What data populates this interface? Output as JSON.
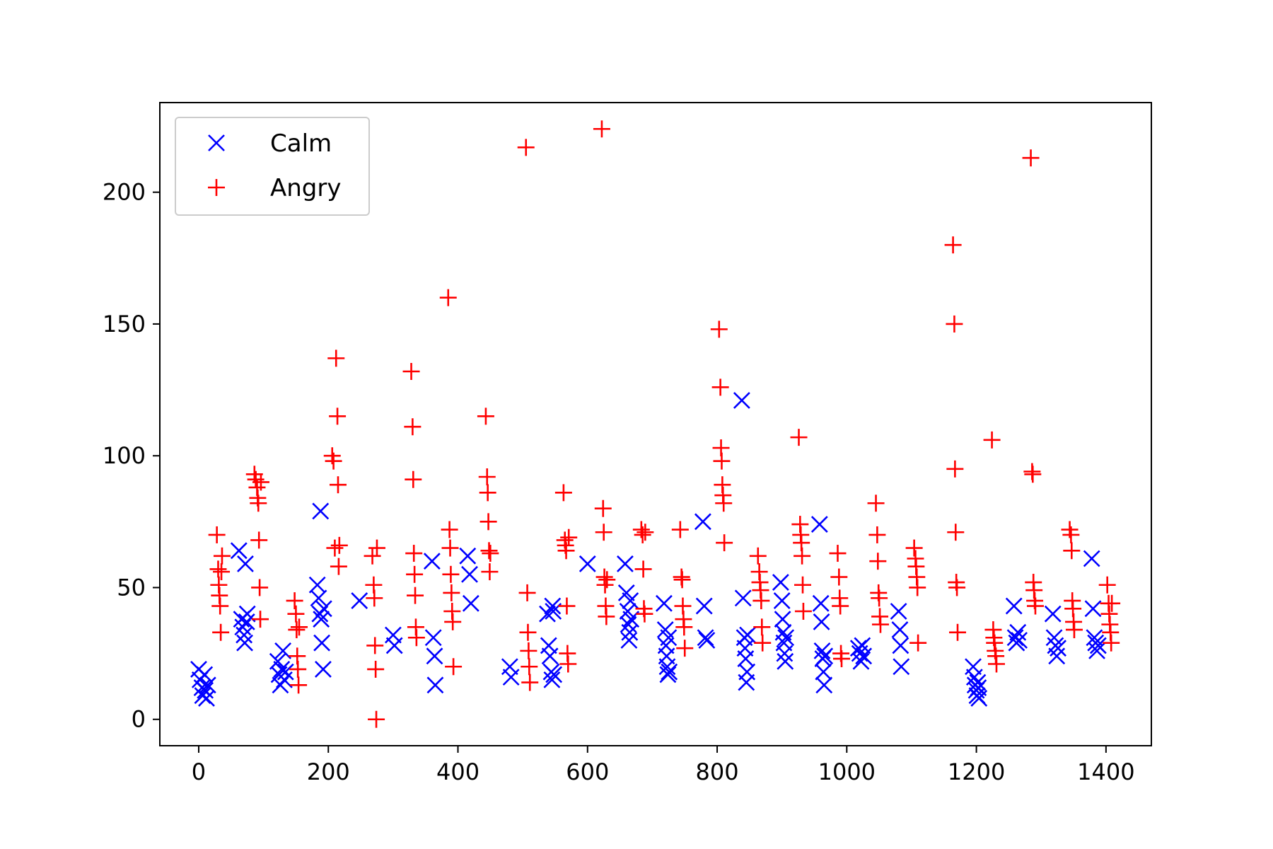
{
  "chart_data": {
    "type": "scatter",
    "xlim": [
      -60,
      1470
    ],
    "ylim": [
      -10,
      234
    ],
    "x_ticks": [
      0,
      200,
      400,
      600,
      800,
      1000,
      1200,
      1400
    ],
    "y_ticks": [
      0,
      50,
      100,
      150,
      200
    ],
    "grid": false,
    "legend_position": "top-left",
    "series": [
      {
        "name": "Calm",
        "marker": "x",
        "color": "#0000ff",
        "points": [
          [
            0,
            19
          ],
          [
            2,
            15
          ],
          [
            5,
            12
          ],
          [
            6,
            9
          ],
          [
            9,
            17
          ],
          [
            10,
            11
          ],
          [
            12,
            8
          ],
          [
            14,
            13
          ],
          [
            62,
            64
          ],
          [
            66,
            38
          ],
          [
            68,
            35
          ],
          [
            70,
            32
          ],
          [
            71,
            29
          ],
          [
            72,
            59
          ],
          [
            74,
            37
          ],
          [
            75,
            40
          ],
          [
            122,
            22
          ],
          [
            124,
            17
          ],
          [
            126,
            13
          ],
          [
            128,
            19
          ],
          [
            130,
            26
          ],
          [
            132,
            15
          ],
          [
            134,
            18
          ],
          [
            183,
            51
          ],
          [
            185,
            46
          ],
          [
            187,
            40
          ],
          [
            188,
            79
          ],
          [
            189,
            38
          ],
          [
            190,
            29
          ],
          [
            192,
            19
          ],
          [
            193,
            42
          ],
          [
            248,
            45
          ],
          [
            300,
            32
          ],
          [
            302,
            28
          ],
          [
            360,
            60
          ],
          [
            362,
            31
          ],
          [
            364,
            24
          ],
          [
            365,
            13
          ],
          [
            415,
            62
          ],
          [
            418,
            55
          ],
          [
            420,
            44
          ],
          [
            480,
            20
          ],
          [
            482,
            16
          ],
          [
            538,
            40
          ],
          [
            540,
            28
          ],
          [
            542,
            24
          ],
          [
            544,
            18
          ],
          [
            545,
            15
          ],
          [
            546,
            43
          ],
          [
            547,
            41
          ],
          [
            548,
            17
          ],
          [
            600,
            59
          ],
          [
            658,
            59
          ],
          [
            660,
            48
          ],
          [
            662,
            41
          ],
          [
            663,
            36
          ],
          [
            664,
            30
          ],
          [
            665,
            33
          ],
          [
            666,
            45
          ],
          [
            667,
            38
          ],
          [
            718,
            44
          ],
          [
            720,
            34
          ],
          [
            721,
            28
          ],
          [
            722,
            24
          ],
          [
            723,
            20
          ],
          [
            724,
            17
          ],
          [
            725,
            31
          ],
          [
            726,
            18
          ],
          [
            778,
            75
          ],
          [
            780,
            43
          ],
          [
            782,
            31
          ],
          [
            784,
            30
          ],
          [
            838,
            121
          ],
          [
            840,
            46
          ],
          [
            842,
            31
          ],
          [
            843,
            27
          ],
          [
            844,
            23
          ],
          [
            845,
            14
          ],
          [
            846,
            18
          ],
          [
            847,
            32
          ],
          [
            898,
            52
          ],
          [
            900,
            45
          ],
          [
            901,
            38
          ],
          [
            902,
            33
          ],
          [
            903,
            29
          ],
          [
            904,
            25
          ],
          [
            905,
            22
          ],
          [
            906,
            31
          ],
          [
            958,
            74
          ],
          [
            960,
            44
          ],
          [
            961,
            37
          ],
          [
            962,
            26
          ],
          [
            963,
            23
          ],
          [
            964,
            18
          ],
          [
            965,
            13
          ],
          [
            966,
            24
          ],
          [
            1018,
            27
          ],
          [
            1020,
            25
          ],
          [
            1022,
            22
          ],
          [
            1024,
            28
          ],
          [
            1026,
            24
          ],
          [
            1080,
            41
          ],
          [
            1082,
            34
          ],
          [
            1083,
            28
          ],
          [
            1084,
            20
          ],
          [
            1195,
            20
          ],
          [
            1197,
            16
          ],
          [
            1198,
            13
          ],
          [
            1200,
            11
          ],
          [
            1201,
            9
          ],
          [
            1202,
            14
          ],
          [
            1203,
            12
          ],
          [
            1204,
            8
          ],
          [
            1258,
            43
          ],
          [
            1260,
            31
          ],
          [
            1262,
            29
          ],
          [
            1264,
            33
          ],
          [
            1266,
            30
          ],
          [
            1318,
            40
          ],
          [
            1320,
            31
          ],
          [
            1322,
            28
          ],
          [
            1324,
            24
          ],
          [
            1326,
            27
          ],
          [
            1378,
            61
          ],
          [
            1380,
            42
          ],
          [
            1382,
            31
          ],
          [
            1384,
            29
          ],
          [
            1386,
            26
          ],
          [
            1388,
            28
          ]
        ]
      },
      {
        "name": "Angry",
        "marker": "+",
        "color": "#ff0000",
        "points": [
          [
            28,
            70
          ],
          [
            30,
            57
          ],
          [
            31,
            51
          ],
          [
            32,
            47
          ],
          [
            33,
            43
          ],
          [
            34,
            33
          ],
          [
            35,
            56
          ],
          [
            36,
            62
          ],
          [
            86,
            93
          ],
          [
            88,
            91
          ],
          [
            90,
            88
          ],
          [
            91,
            84
          ],
          [
            92,
            82
          ],
          [
            93,
            68
          ],
          [
            94,
            50
          ],
          [
            95,
            38
          ],
          [
            96,
            90
          ],
          [
            148,
            45
          ],
          [
            150,
            40
          ],
          [
            151,
            34
          ],
          [
            152,
            24
          ],
          [
            153,
            19
          ],
          [
            154,
            13
          ],
          [
            155,
            35
          ],
          [
            206,
            100
          ],
          [
            208,
            98
          ],
          [
            210,
            65
          ],
          [
            212,
            137
          ],
          [
            214,
            115
          ],
          [
            215,
            89
          ],
          [
            216,
            58
          ],
          [
            217,
            66
          ],
          [
            268,
            62
          ],
          [
            270,
            51
          ],
          [
            271,
            46
          ],
          [
            272,
            28
          ],
          [
            273,
            19
          ],
          [
            274,
            0
          ],
          [
            275,
            65
          ],
          [
            328,
            132
          ],
          [
            330,
            111
          ],
          [
            331,
            91
          ],
          [
            332,
            63
          ],
          [
            333,
            55
          ],
          [
            334,
            47
          ],
          [
            335,
            35
          ],
          [
            336,
            31
          ],
          [
            385,
            160
          ],
          [
            387,
            72
          ],
          [
            388,
            65
          ],
          [
            389,
            55
          ],
          [
            390,
            48
          ],
          [
            391,
            41
          ],
          [
            392,
            37
          ],
          [
            393,
            20
          ],
          [
            443,
            115
          ],
          [
            445,
            92
          ],
          [
            446,
            86
          ],
          [
            447,
            75
          ],
          [
            448,
            64
          ],
          [
            449,
            56
          ],
          [
            450,
            63
          ],
          [
            505,
            217
          ],
          [
            507,
            48
          ],
          [
            508,
            33
          ],
          [
            509,
            26
          ],
          [
            510,
            20
          ],
          [
            511,
            14
          ],
          [
            563,
            86
          ],
          [
            565,
            68
          ],
          [
            566,
            66
          ],
          [
            567,
            64
          ],
          [
            568,
            43
          ],
          [
            569,
            25
          ],
          [
            570,
            21
          ],
          [
            571,
            69
          ],
          [
            622,
            224
          ],
          [
            624,
            80
          ],
          [
            625,
            71
          ],
          [
            626,
            54
          ],
          [
            627,
            51
          ],
          [
            628,
            43
          ],
          [
            629,
            39
          ],
          [
            630,
            53
          ],
          [
            683,
            72
          ],
          [
            685,
            70
          ],
          [
            686,
            57
          ],
          [
            687,
            42
          ],
          [
            688,
            40
          ],
          [
            689,
            71
          ],
          [
            743,
            72
          ],
          [
            745,
            54
          ],
          [
            746,
            53
          ],
          [
            747,
            43
          ],
          [
            748,
            38
          ],
          [
            749,
            35
          ],
          [
            750,
            27
          ],
          [
            803,
            148
          ],
          [
            805,
            126
          ],
          [
            806,
            103
          ],
          [
            807,
            98
          ],
          [
            808,
            89
          ],
          [
            809,
            85
          ],
          [
            810,
            82
          ],
          [
            811,
            67
          ],
          [
            863,
            62
          ],
          [
            865,
            56
          ],
          [
            866,
            52
          ],
          [
            867,
            49
          ],
          [
            868,
            45
          ],
          [
            869,
            35
          ],
          [
            870,
            29
          ],
          [
            926,
            107
          ],
          [
            928,
            74
          ],
          [
            929,
            70
          ],
          [
            930,
            67
          ],
          [
            931,
            62
          ],
          [
            932,
            51
          ],
          [
            933,
            41
          ],
          [
            986,
            63
          ],
          [
            988,
            54
          ],
          [
            989,
            46
          ],
          [
            990,
            43
          ],
          [
            991,
            25
          ],
          [
            992,
            23
          ],
          [
            1045,
            82
          ],
          [
            1047,
            70
          ],
          [
            1048,
            60
          ],
          [
            1049,
            48
          ],
          [
            1050,
            46
          ],
          [
            1051,
            39
          ],
          [
            1052,
            36
          ],
          [
            1104,
            65
          ],
          [
            1106,
            61
          ],
          [
            1107,
            58
          ],
          [
            1108,
            54
          ],
          [
            1109,
            50
          ],
          [
            1110,
            29
          ],
          [
            1164,
            180
          ],
          [
            1166,
            150
          ],
          [
            1167,
            95
          ],
          [
            1168,
            71
          ],
          [
            1169,
            52
          ],
          [
            1170,
            50
          ],
          [
            1171,
            33
          ],
          [
            1224,
            106
          ],
          [
            1226,
            34
          ],
          [
            1227,
            31
          ],
          [
            1228,
            29
          ],
          [
            1229,
            26
          ],
          [
            1230,
            24
          ],
          [
            1231,
            21
          ],
          [
            1284,
            213
          ],
          [
            1286,
            94
          ],
          [
            1287,
            93
          ],
          [
            1288,
            52
          ],
          [
            1289,
            49
          ],
          [
            1290,
            45
          ],
          [
            1291,
            43
          ],
          [
            1344,
            72
          ],
          [
            1346,
            70
          ],
          [
            1347,
            64
          ],
          [
            1348,
            45
          ],
          [
            1349,
            42
          ],
          [
            1350,
            37
          ],
          [
            1351,
            34
          ],
          [
            1402,
            51
          ],
          [
            1404,
            44
          ],
          [
            1405,
            40
          ],
          [
            1406,
            36
          ],
          [
            1407,
            33
          ],
          [
            1408,
            29
          ],
          [
            1409,
            44
          ]
        ]
      }
    ]
  }
}
